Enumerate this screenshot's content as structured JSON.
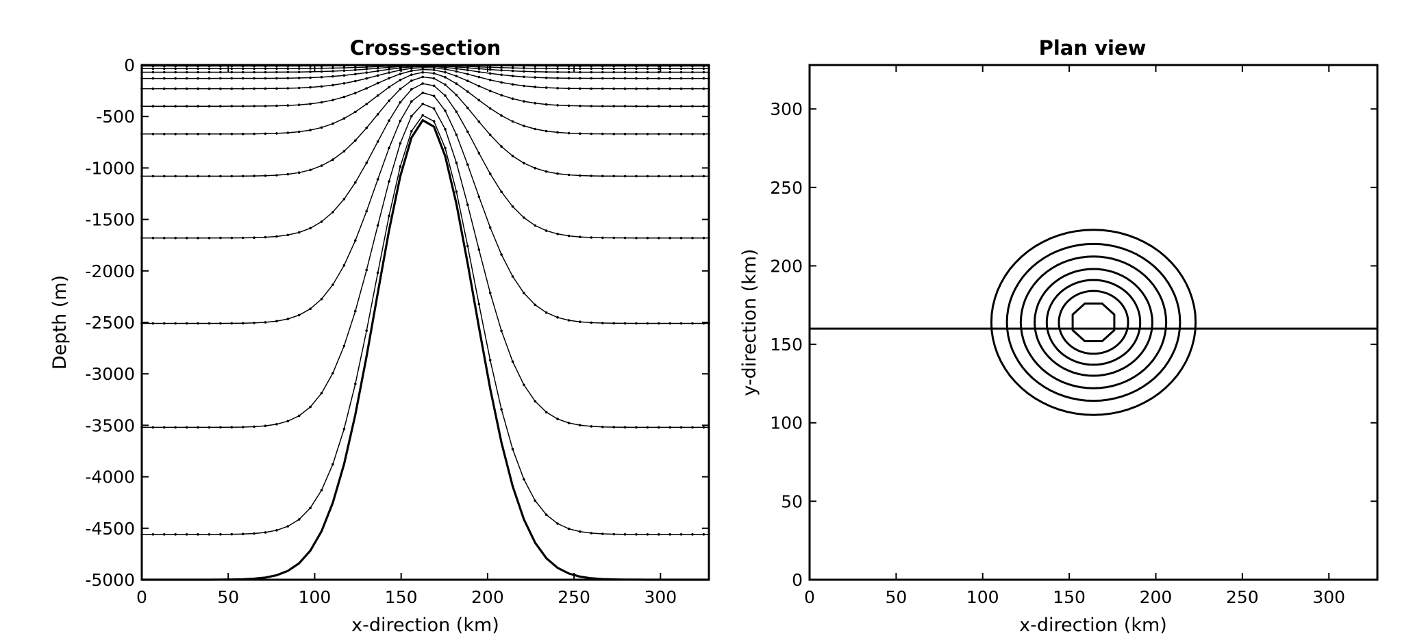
{
  "chart_data": [
    {
      "type": "line",
      "title": "Cross-section",
      "xlabel": "x-direction (km)",
      "ylabel": "Depth (m)",
      "xlim": [
        0,
        328
      ],
      "ylim": [
        -5000,
        0
      ],
      "xticks": [
        0,
        50,
        100,
        150,
        200,
        250,
        300
      ],
      "yticks": [
        0,
        -500,
        -1000,
        -1500,
        -2000,
        -2500,
        -3000,
        -3500,
        -4000,
        -4500,
        -5000
      ],
      "grid": false,
      "legend": "none",
      "bathymetry": {
        "description_values": "Gaussian seamount",
        "center_x": 164,
        "base_depth": -5000,
        "summit_depth": -530,
        "width_km": 40
      },
      "level_depths_far_field": [
        -10,
        -35,
        -70,
        -130,
        -230,
        -400,
        -670,
        -1080,
        -1680,
        -2510,
        -3520,
        -4560
      ]
    },
    {
      "type": "line",
      "title": "Plan view",
      "xlabel": "x-direction (km)",
      "ylabel": "y-direction (km)",
      "xlim": [
        0,
        328
      ],
      "ylim": [
        0,
        328
      ],
      "xticks": [
        0,
        50,
        100,
        150,
        200,
        250,
        300
      ],
      "yticks": [
        0,
        50,
        100,
        150,
        200,
        250,
        300
      ],
      "grid": false,
      "legend": "none",
      "contour_center": [
        164,
        164
      ],
      "contour_radii_km": [
        13,
        20,
        27,
        34,
        42,
        50,
        59
      ],
      "section_line_y": 160
    }
  ]
}
